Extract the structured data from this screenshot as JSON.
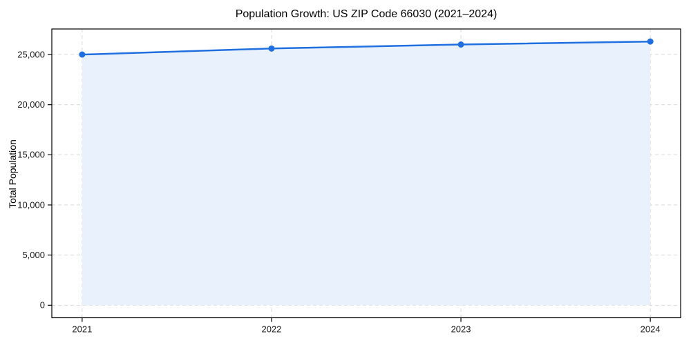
{
  "chart_data": {
    "type": "area",
    "title": "Population Growth: US ZIP Code 66030 (2021–2024)",
    "xlabel": "",
    "ylabel": "Total Population",
    "x": [
      2021,
      2022,
      2023,
      2024
    ],
    "x_tick_labels": [
      "2021",
      "2022",
      "2023",
      "2024"
    ],
    "values": [
      25000,
      25600,
      26000,
      26300
    ],
    "yticks": [
      0,
      5000,
      10000,
      15000,
      20000,
      25000
    ],
    "y_tick_labels": [
      "0",
      "5,000",
      "10,000",
      "15,000",
      "20,000",
      "25,000"
    ],
    "xlim": [
      2020.84,
      2024.16
    ],
    "ylim": [
      -1250,
      27550
    ],
    "grid": true,
    "legend": "none",
    "colors": {
      "line": "#1f6fe0",
      "marker": "#1f6fe0",
      "fill": "#e9f1fd",
      "grid": "#d9d9d9",
      "axis": "#000000"
    }
  }
}
